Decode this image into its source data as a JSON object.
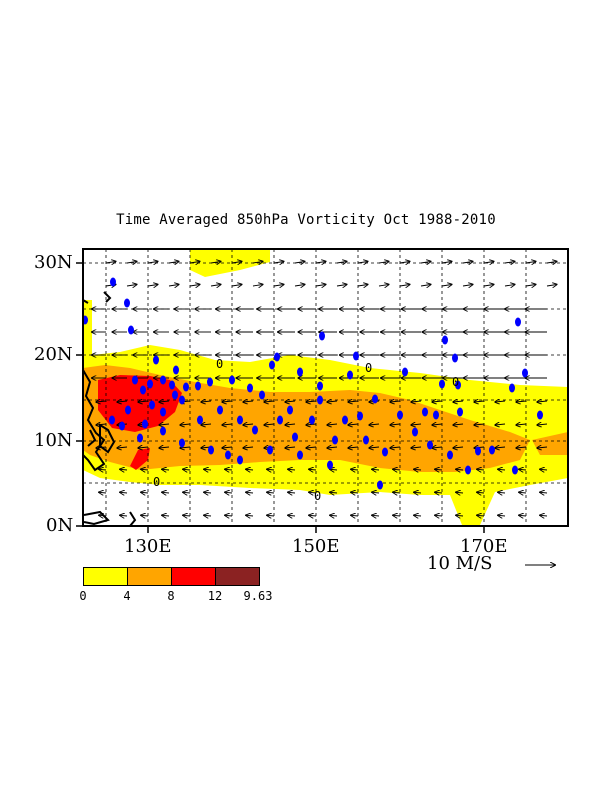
{
  "title": "Time Averaged 850hPa Vorticity  Oct 1988-2010",
  "axes": {
    "lat_labels": [
      "30N",
      "20N",
      "10N",
      "0N"
    ],
    "lon_labels": [
      "130E",
      "150E",
      "170E"
    ]
  },
  "contour_labels": [
    "0",
    "0",
    "0",
    "0"
  ],
  "vector_scale_label": "10 M/S",
  "legend": {
    "labels": [
      "0",
      "4",
      "8",
      "12",
      "9.63"
    ],
    "colors": [
      "#ffff00",
      "#ffa500",
      "#ff0000",
      "#8b2222"
    ]
  },
  "colors": {
    "level_0_4": "#ffff00",
    "level_4_8": "#ffa500",
    "level_8_12": "#ff0000",
    "level_12_plus": "#8b2222",
    "storm_marker": "#0000ff",
    "coast": "#000000"
  },
  "map_extent": {
    "lon_min": 120,
    "lon_max": 178,
    "lat_min": 0,
    "lat_max": 32
  }
}
